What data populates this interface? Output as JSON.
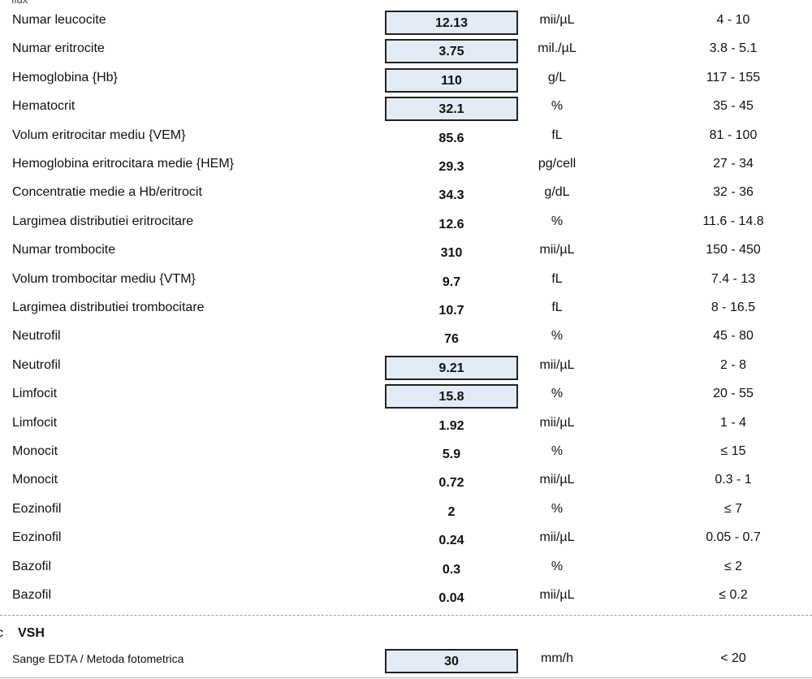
{
  "header": {
    "cut_text": "flux"
  },
  "rows": [
    {
      "name": "Numar leucocite",
      "value": "12.13",
      "unit": "mii/µL",
      "range": "4 - 10",
      "flagged": true
    },
    {
      "name": "Numar eritrocite",
      "value": "3.75",
      "unit": "mil./µL",
      "range": "3.8 - 5.1",
      "flagged": true
    },
    {
      "name": "Hemoglobina {Hb}",
      "value": "110",
      "unit": "g/L",
      "range": "117 - 155",
      "flagged": true
    },
    {
      "name": "Hematocrit",
      "value": "32.1",
      "unit": "%",
      "range": "35 - 45",
      "flagged": true
    },
    {
      "name": "Volum eritrocitar mediu {VEM}",
      "value": "85.6",
      "unit": "fL",
      "range": "81 - 100",
      "flagged": false
    },
    {
      "name": "Hemoglobina eritrocitara medie {HEM}",
      "value": "29.3",
      "unit": "pg/cell",
      "range": "27 - 34",
      "flagged": false
    },
    {
      "name": "Concentratie medie a Hb/eritrocit",
      "value": "34.3",
      "unit": "g/dL",
      "range": "32 - 36",
      "flagged": false
    },
    {
      "name": "Largimea distributiei eritrocitare",
      "value": "12.6",
      "unit": "%",
      "range": "11.6 - 14.8",
      "flagged": false
    },
    {
      "name": "Numar trombocite",
      "value": "310",
      "unit": "mii/µL",
      "range": "150 - 450",
      "flagged": false
    },
    {
      "name": "Volum trombocitar mediu {VTM}",
      "value": "9.7",
      "unit": "fL",
      "range": "7.4 - 13",
      "flagged": false
    },
    {
      "name": "Largimea distributiei trombocitare",
      "value": "10.7",
      "unit": "fL",
      "range": "8 - 16.5",
      "flagged": false
    },
    {
      "name": "Neutrofil",
      "value": "76",
      "unit": "%",
      "range": "45 - 80",
      "flagged": false
    },
    {
      "name": "Neutrofil",
      "value": "9.21",
      "unit": "mii/µL",
      "range": "2 - 8",
      "flagged": true
    },
    {
      "name": "Limfocit",
      "value": "15.8",
      "unit": "%",
      "range": "20 - 55",
      "flagged": true
    },
    {
      "name": "Limfocit",
      "value": "1.92",
      "unit": "mii/µL",
      "range": "1 - 4",
      "flagged": false
    },
    {
      "name": "Monocit",
      "value": "5.9",
      "unit": "%",
      "range": "≤ 15",
      "flagged": false
    },
    {
      "name": "Monocit",
      "value": "0.72",
      "unit": "mii/µL",
      "range": "0.3 - 1",
      "flagged": false
    },
    {
      "name": "Eozinofil",
      "value": "2",
      "unit": "%",
      "range": "≤ 7",
      "flagged": false
    },
    {
      "name": "Eozinofil",
      "value": "0.24",
      "unit": "mii/µL",
      "range": "0.05 - 0.7",
      "flagged": false
    },
    {
      "name": "Bazofil",
      "value": "0.3",
      "unit": "%",
      "range": "≤ 2",
      "flagged": false
    },
    {
      "name": "Bazofil",
      "value": "0.04",
      "unit": "mii/µL",
      "range": "≤ 0.2",
      "flagged": false
    }
  ],
  "section": {
    "marker": "c",
    "title": "VSH",
    "row": {
      "name": "Sange EDTA / Metoda fotometrica",
      "value": "30",
      "unit": "mm/h",
      "range": "< 20",
      "flagged": true
    }
  }
}
